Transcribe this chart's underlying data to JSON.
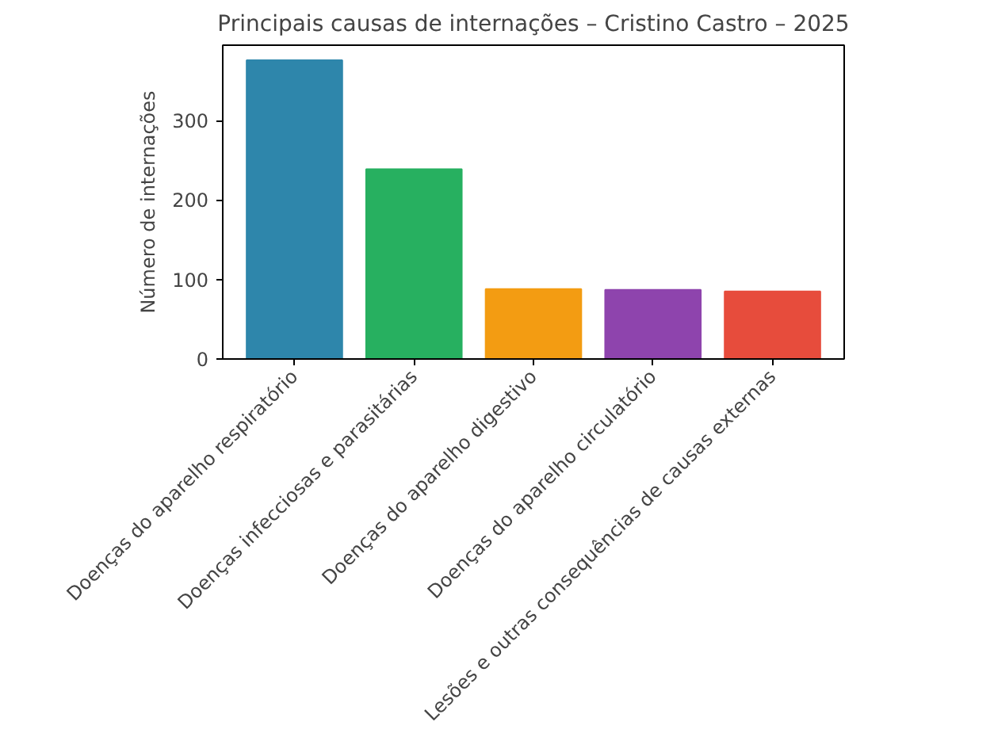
{
  "chart_data": {
    "type": "bar",
    "title": "Principais causas de internações – Cristino Castro – 2025",
    "ylabel": "Número de internações",
    "categories": [
      "Doenças do aparelho respiratório",
      "Doenças infecciosas e parasitárias",
      "Doenças do aparelho digestivo",
      "Doenças do aparelho circulatório",
      "Lesões e outras consequências de causas externas"
    ],
    "values": [
      376,
      239,
      88,
      87,
      85
    ],
    "colors": [
      "#2e86ab",
      "#27b060",
      "#f39c12",
      "#8e44ad",
      "#e74c3c"
    ],
    "ylim": [
      0,
      395
    ],
    "yticks": [
      0,
      100,
      200,
      300
    ],
    "grid": false
  }
}
